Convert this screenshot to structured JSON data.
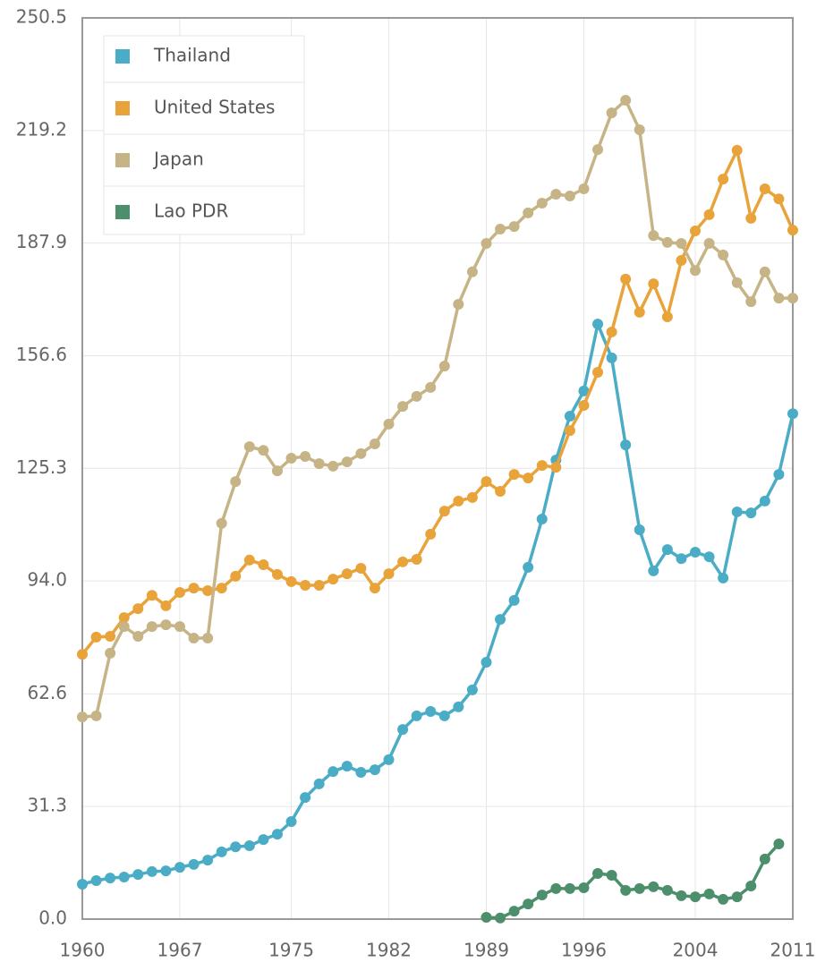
{
  "chart_data": {
    "type": "line",
    "x": [
      1960,
      1961,
      1962,
      1963,
      1964,
      1965,
      1966,
      1967,
      1968,
      1969,
      1970,
      1971,
      1972,
      1973,
      1974,
      1975,
      1976,
      1977,
      1978,
      1979,
      1980,
      1981,
      1982,
      1983,
      1984,
      1985,
      1986,
      1987,
      1988,
      1989,
      1990,
      1991,
      1992,
      1993,
      1994,
      1995,
      1996,
      1997,
      1998,
      1999,
      2000,
      2001,
      2002,
      2003,
      2004,
      2005,
      2006,
      2007,
      2008,
      2009,
      2010,
      2011
    ],
    "xlim": [
      1960,
      2011
    ],
    "xticks": [
      1960,
      1967,
      1975,
      1982,
      1989,
      1996,
      2004,
      2011
    ],
    "ylim": [
      0,
      250.5
    ],
    "yticks": [
      {
        "value": 0,
        "label": "0.0"
      },
      31.3,
      62.6,
      {
        "value": 94,
        "label": "94.0"
      },
      125.3,
      156.6,
      187.9,
      219.2,
      250.5
    ],
    "grid": true,
    "legend": "top-left",
    "series": [
      {
        "name": "Thailand",
        "color": "#4bacc6",
        "values": [
          9.7,
          10.7,
          11.4,
          11.7,
          12.4,
          13.2,
          13.4,
          14.4,
          15.2,
          16.4,
          18.7,
          20.1,
          20.4,
          22.1,
          23.6,
          27.1,
          33.8,
          37.6,
          41,
          42.5,
          40.8,
          41.5,
          44.3,
          52.7,
          56.5,
          57.7,
          56.5,
          59,
          63.7,
          71.4,
          83.3,
          88.6,
          97.8,
          111.2,
          127.6,
          139.8,
          146.8,
          165.4,
          156,
          131.8,
          108.2,
          96.8,
          102.7,
          100.2,
          102,
          100.7,
          94.8,
          113.2,
          112.9,
          116.2,
          123.6,
          140.5
        ]
      },
      {
        "name": "United States",
        "color": "#e8a33b",
        "values": [
          73.6,
          78.4,
          78.6,
          83.8,
          86.3,
          90,
          87.1,
          90.8,
          92,
          91.3,
          92,
          95.3,
          99.8,
          98.5,
          95.8,
          93.8,
          92.8,
          92.8,
          94.5,
          96,
          97.5,
          92,
          96,
          99.3,
          100,
          107,
          113.4,
          116.2,
          117.2,
          121.6,
          118.9,
          123.6,
          122.6,
          126.1,
          125.6,
          135.8,
          142.8,
          152,
          163.2,
          177.9,
          168.7,
          176.6,
          167.4,
          183.1,
          191.3,
          195.8,
          205.7,
          213.7,
          194.8,
          203,
          200.2,
          191.5
        ]
      },
      {
        "name": "Japan",
        "color": "#c6b487",
        "values": [
          56.2,
          56.5,
          73.9,
          81.3,
          78.6,
          81.3,
          81.8,
          81.3,
          78.1,
          78.1,
          110,
          121.6,
          131.3,
          130.3,
          124.6,
          128.1,
          128.6,
          126.6,
          125.9,
          127.1,
          129.4,
          132.1,
          137.6,
          142.5,
          145.3,
          147.8,
          153.7,
          170.9,
          179.9,
          187.8,
          191.8,
          192.5,
          196.3,
          199,
          201.5,
          201,
          203,
          213.9,
          224.1,
          227.6,
          219.4,
          190,
          188.1,
          187.8,
          180.3,
          187.8,
          184.6,
          176.9,
          171.6,
          179.9,
          172.6,
          172.6
        ]
      },
      {
        "name": "Lao PDR",
        "color": "#4d8f6c",
        "values": [
          null,
          null,
          null,
          null,
          null,
          null,
          null,
          null,
          null,
          null,
          null,
          null,
          null,
          null,
          null,
          null,
          null,
          null,
          null,
          null,
          null,
          null,
          null,
          null,
          null,
          null,
          null,
          null,
          null,
          0.5,
          0.3,
          2.2,
          4.2,
          6.7,
          8.5,
          8.5,
          8.7,
          12.7,
          12.2,
          8,
          8.5,
          9,
          8,
          6.5,
          6.2,
          7,
          5.5,
          6.2,
          9.2,
          16.7,
          20.9,
          null
        ]
      }
    ]
  }
}
